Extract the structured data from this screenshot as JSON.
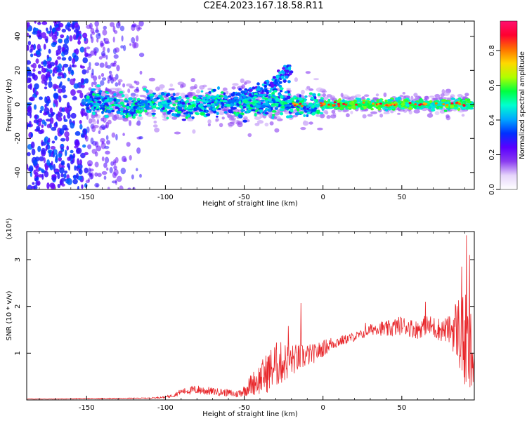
{
  "title": "C2E4.2023.167.18.58.R11",
  "colors": {
    "snr_line": "#e8262a",
    "axes": "#000000",
    "colormap": [
      "#ffffff",
      "#e6d5fb",
      "#8a3cf0",
      "#5a00ff",
      "#0030ff",
      "#00a8ff",
      "#00ffd0",
      "#00ff40",
      "#b0ff00",
      "#ffd800",
      "#ff7000",
      "#ff0030",
      "#ff1070"
    ]
  },
  "chart_data": [
    {
      "type": "heatmap",
      "xlabel": "Height of straight line (km)",
      "ylabel": "Frequency (Hz)",
      "xlim": [
        -188,
        96
      ],
      "ylim": [
        -50,
        49
      ],
      "xticks": [
        -150,
        -100,
        -50,
        0,
        50
      ],
      "yticks": [
        -40,
        -20,
        0,
        20,
        40
      ],
      "colorbar": {
        "label": "Normalized spectral amplitude",
        "range": [
          0,
          0.97
        ],
        "ticks": [
          0.0,
          0.2,
          0.4,
          0.6,
          0.8
        ]
      },
      "features": {
        "main_band_center_hz": 0,
        "main_band_from_km": -150,
        "main_band_to_km": 95,
        "diffuse_noise_from_km": -188,
        "diffuse_noise_to_km": -115,
        "rising_branch": {
          "x": [
            -60,
            -50,
            -40,
            -30,
            -25,
            -20
          ],
          "y": [
            2,
            5,
            8,
            14,
            17,
            22
          ]
        }
      }
    },
    {
      "type": "line",
      "xlabel": "Height of straight line (km)",
      "ylabel": "SNR (10 * v/v)",
      "y_multiplier": "(x10⁴)",
      "xlim": [
        -188,
        96
      ],
      "ylim": [
        0,
        3.6
      ],
      "xticks": [
        -150,
        -100,
        -50,
        0,
        50
      ],
      "yticks": [
        1,
        2,
        3
      ],
      "series": [
        {
          "x": [
            -188,
            -170,
            -150,
            -130,
            -110,
            -100,
            -95,
            -90,
            -85,
            -80,
            -75,
            -70,
            -65,
            -60,
            -55,
            -50,
            -45,
            -40,
            -35,
            -30,
            -25,
            -20,
            -15,
            -10,
            -5,
            0,
            5,
            10,
            15,
            20,
            25,
            30,
            35,
            40,
            45,
            50,
            55,
            60,
            65,
            70,
            75,
            80,
            85,
            90,
            95
          ],
          "y": [
            0.02,
            0.02,
            0.03,
            0.03,
            0.04,
            0.06,
            0.1,
            0.18,
            0.2,
            0.22,
            0.2,
            0.18,
            0.17,
            0.15,
            0.12,
            0.2,
            0.35,
            0.45,
            0.6,
            0.75,
            0.8,
            0.85,
            0.9,
            0.95,
            1.0,
            1.1,
            1.2,
            1.25,
            1.3,
            1.35,
            1.4,
            1.5,
            1.55,
            1.5,
            1.55,
            1.6,
            1.55,
            1.5,
            1.6,
            1.55,
            1.5,
            1.5,
            1.55,
            1.2,
            0.9
          ],
          "noise": [
            0.005,
            0.005,
            0.01,
            0.01,
            0.01,
            0.02,
            0.04,
            0.06,
            0.08,
            0.1,
            0.1,
            0.08,
            0.08,
            0.08,
            0.08,
            0.12,
            0.25,
            0.35,
            0.45,
            0.5,
            0.45,
            0.35,
            0.3,
            0.25,
            0.2,
            0.18,
            0.15,
            0.12,
            0.1,
            0.1,
            0.1,
            0.12,
            0.15,
            0.18,
            0.2,
            0.2,
            0.2,
            0.2,
            0.22,
            0.25,
            0.25,
            0.3,
            0.7,
            1.1,
            1.0
          ],
          "peaks": [
            {
              "x": -14,
              "y": 2.07
            },
            {
              "x": -22,
              "y": 1.58
            },
            {
              "x": 27,
              "y": 1.65
            },
            {
              "x": 65,
              "y": 2.1
            },
            {
              "x": 88,
              "y": 2.85
            },
            {
              "x": 91,
              "y": 3.52
            },
            {
              "x": 93,
              "y": 3.1
            }
          ]
        }
      ]
    }
  ]
}
